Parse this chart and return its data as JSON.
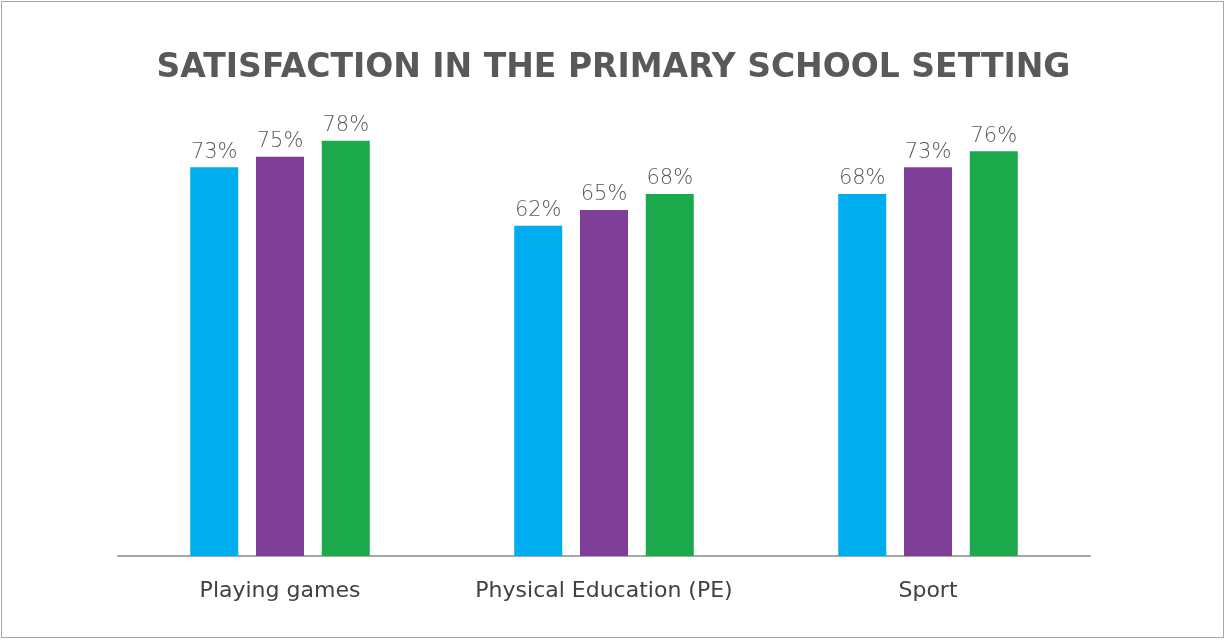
{
  "chart_data": {
    "type": "bar",
    "title": "SATISFACTION IN THE PRIMARY SCHOOL SETTING",
    "categories": [
      "Playing games",
      "Physical Education (PE)",
      "Sport"
    ],
    "series": [
      {
        "color": "#00aeef",
        "values": [
          73,
          62,
          68
        ],
        "value_labels": [
          "73%",
          "62%",
          "68%"
        ]
      },
      {
        "color": "#7f3f98",
        "values": [
          75,
          65,
          73
        ],
        "value_labels": [
          "75%",
          "65%",
          "73%"
        ]
      },
      {
        "color": "#1ba94c",
        "values": [
          78,
          68,
          76
        ],
        "value_labels": [
          "78%",
          "68%",
          "76%"
        ]
      }
    ],
    "grid": false
  }
}
